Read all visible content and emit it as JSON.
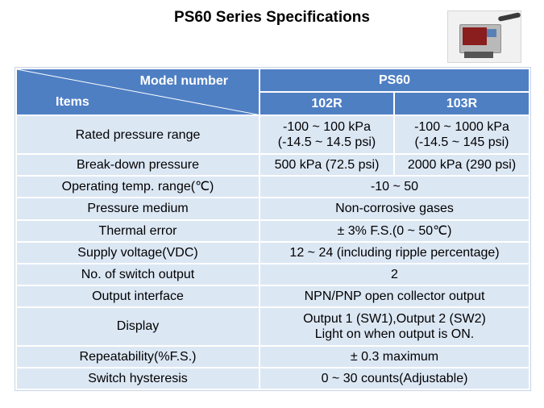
{
  "title": "PS60 Series Specifications",
  "header": {
    "model_number_label": "Model number",
    "items_label": "Items",
    "series": "PS60",
    "models": [
      "102R",
      "103R"
    ]
  },
  "rows": [
    {
      "label": "Rated pressure range",
      "values": [
        "-100 ~ 100 kPa\n(-14.5 ~ 14.5 psi)",
        "-100 ~ 1000 kPa\n(-14.5 ~ 145 psi)"
      ]
    },
    {
      "label": "Break-down pressure",
      "values": [
        "500 kPa (72.5 psi)",
        "2000 kPa (290 psi)"
      ]
    },
    {
      "label": "Operating temp. range(℃)",
      "value": "-10 ~ 50"
    },
    {
      "label": "Pressure medium",
      "value": "Non-corrosive gases"
    },
    {
      "label": "Thermal error",
      "value": "± 3% F.S.(0 ~ 50℃)"
    },
    {
      "label": "Supply voltage(VDC)",
      "value": "12 ~ 24 (including ripple percentage)"
    },
    {
      "label": "No. of switch output",
      "value": "2"
    },
    {
      "label": "Output interface",
      "value": "NPN/PNP open collector output"
    },
    {
      "label": "Display",
      "value": "Output 1 (SW1),Output 2 (SW2)\nLight on when output is ON."
    },
    {
      "label": "Repeatability(%F.S.)",
      "value": "± 0.3 maximum"
    },
    {
      "label": "Switch hysteresis",
      "value": "0 ~ 30 counts(Adjustable)"
    }
  ],
  "colors": {
    "header": "#4f7fc3",
    "cell": "#dce7f4"
  }
}
